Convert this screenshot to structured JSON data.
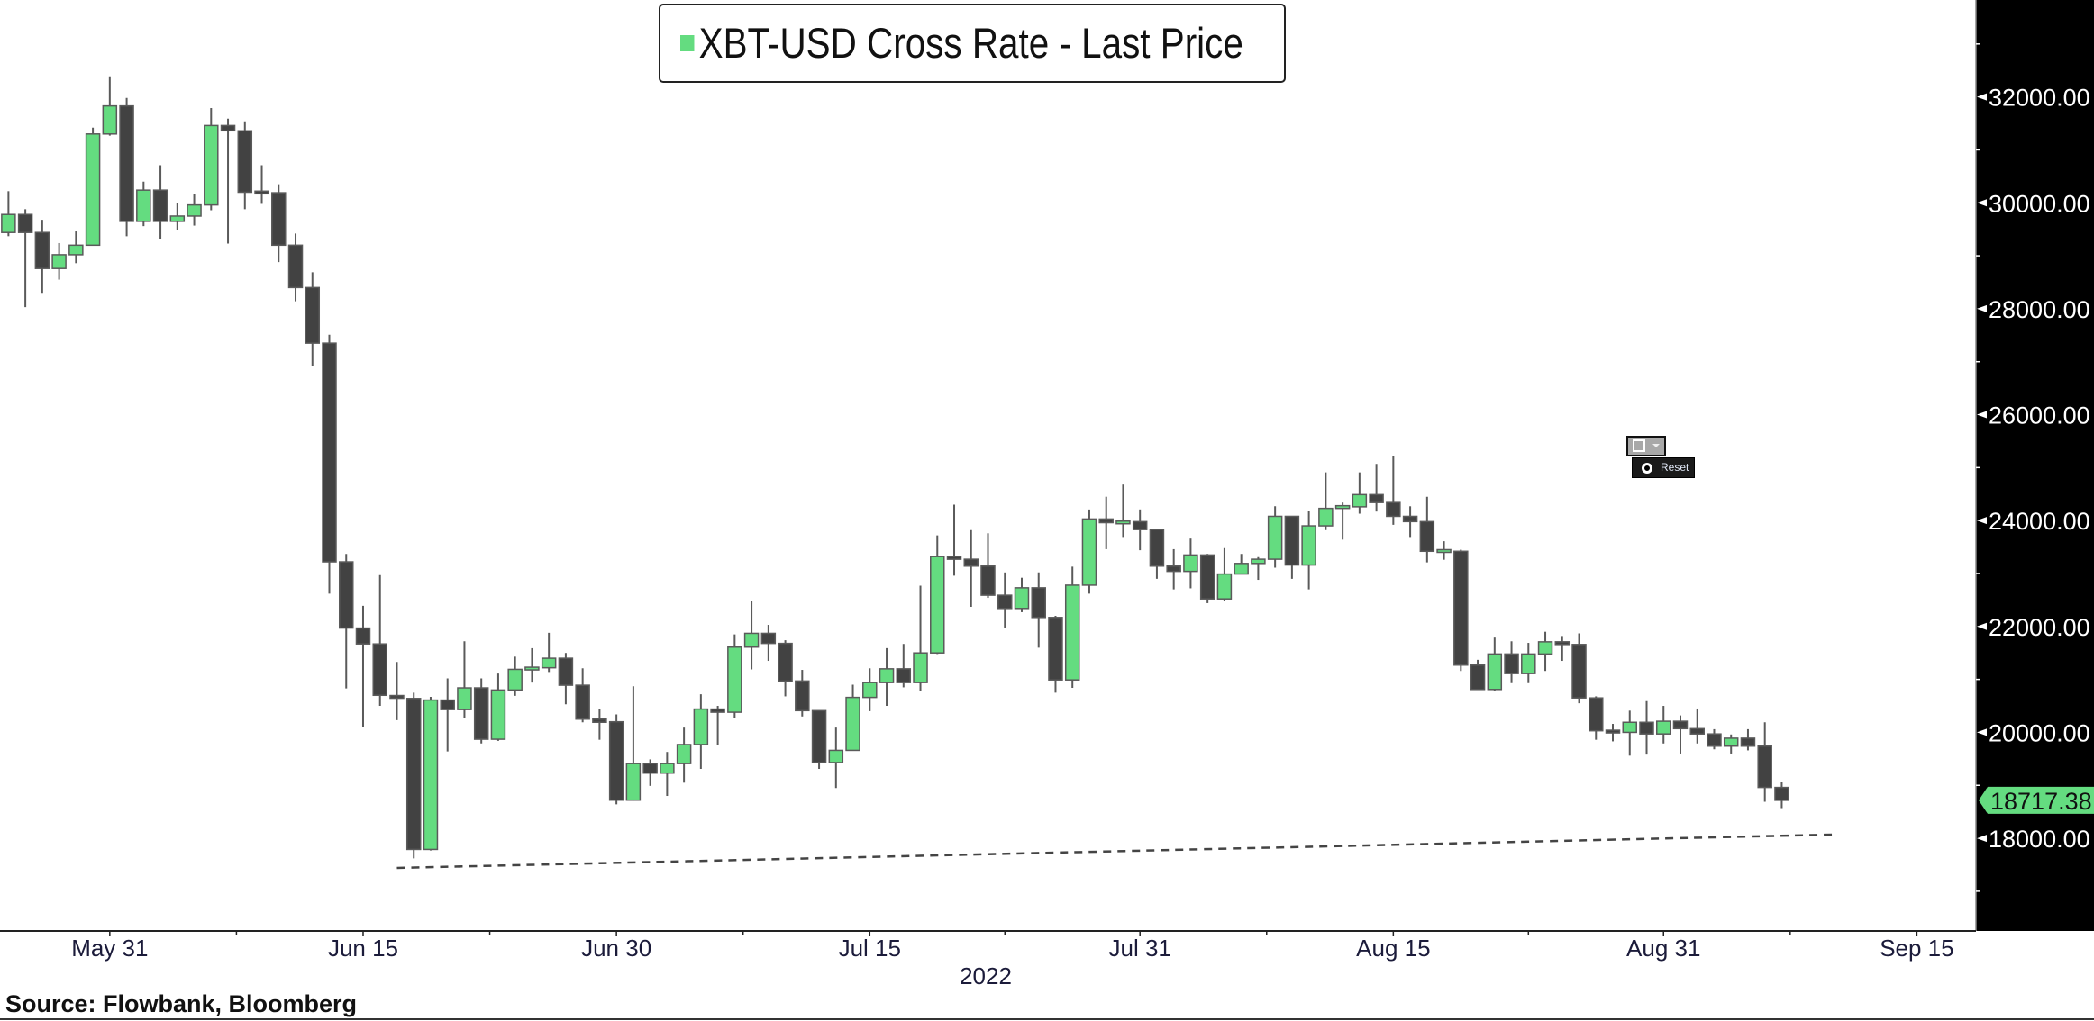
{
  "title": "XBT-USD Cross Rate - Last Price",
  "source": "Source: Flowbank, Bloomberg",
  "widget": {
    "reset_label": "Reset"
  },
  "colors": {
    "up": "#64dc80",
    "down": "#424242",
    "axis_bg": "#000000",
    "last_price_tag": "#64dc80"
  },
  "chart_data": {
    "type": "candlestick",
    "title": "XBT-USD Cross Rate - Last Price",
    "legend": [
      {
        "name": "XBT-USD Cross Rate - Last Price",
        "placement": "top-center"
      }
    ],
    "xlabel": "2022",
    "ylabel": "",
    "start_date": "2022-05-25",
    "interval": "1 day",
    "x_ticks": [
      {
        "label": "May 31",
        "day": 6
      },
      {
        "label": "Jun 15",
        "day": 21
      },
      {
        "label": "Jun 30",
        "day": 36
      },
      {
        "label": "Jul 15",
        "day": 51
      },
      {
        "label": "Jul 31",
        "day": 67
      },
      {
        "label": "Aug 15",
        "day": 82
      },
      {
        "label": "Aug 31",
        "day": 98
      },
      {
        "label": "Sep 15",
        "day": 113
      }
    ],
    "y_ticks": [
      "18000.00",
      "20000.00",
      "22000.00",
      "24000.00",
      "26000.00",
      "28000.00",
      "30000.00",
      "32000.00"
    ],
    "ylim": [
      16250,
      33830
    ],
    "xlim_days": [
      -0.5,
      116.5
    ],
    "grid": false,
    "y_axis_side": "right",
    "last_price": "18717.38",
    "ohlc_fields": [
      "open",
      "high",
      "low",
      "close"
    ],
    "ohlc": [
      [
        29440,
        30220,
        29370,
        29780
      ],
      [
        29780,
        29880,
        28030,
        29440
      ],
      [
        29440,
        29680,
        28300,
        28760
      ],
      [
        28760,
        29240,
        28550,
        29020
      ],
      [
        29020,
        29460,
        28860,
        29200
      ],
      [
        29200,
        31420,
        29200,
        31300
      ],
      [
        31300,
        32390,
        31270,
        31830
      ],
      [
        31830,
        31980,
        29370,
        29650
      ],
      [
        29650,
        30400,
        29560,
        30240
      ],
      [
        30240,
        30710,
        29310,
        29650
      ],
      [
        29650,
        29990,
        29490,
        29750
      ],
      [
        29750,
        30170,
        29570,
        29960
      ],
      [
        29960,
        31790,
        29860,
        31460
      ],
      [
        31460,
        31590,
        29230,
        31360
      ],
      [
        31360,
        31540,
        29880,
        30200
      ],
      [
        30200,
        30710,
        29980,
        30190
      ],
      [
        30190,
        30350,
        28880,
        29200
      ],
      [
        29200,
        29420,
        28140,
        28400
      ],
      [
        28400,
        28690,
        26910,
        27350
      ],
      [
        27350,
        27510,
        22620,
        23220
      ],
      [
        23220,
        23370,
        20830,
        21970
      ],
      [
        21970,
        22390,
        20110,
        21670
      ],
      [
        21670,
        22970,
        20500,
        20700
      ],
      [
        20680,
        21330,
        20230,
        20660
      ],
      [
        20640,
        20750,
        17620,
        17790
      ],
      [
        17790,
        20670,
        17770,
        20610
      ],
      [
        20610,
        21020,
        19640,
        20430
      ],
      [
        20430,
        21720,
        20280,
        20840
      ],
      [
        20840,
        21020,
        19790,
        19870
      ],
      [
        19870,
        21110,
        19840,
        20800
      ],
      [
        20800,
        21430,
        20690,
        21190
      ],
      [
        21200,
        21590,
        20940,
        21210
      ],
      [
        21220,
        21880,
        21140,
        21400
      ],
      [
        21400,
        21500,
        20530,
        20890
      ],
      [
        20890,
        21210,
        20190,
        20250
      ],
      [
        20250,
        20440,
        19860,
        20190
      ],
      [
        20200,
        20340,
        18640,
        18720
      ],
      [
        18720,
        20870,
        18710,
        19410
      ],
      [
        19410,
        19490,
        18990,
        19230
      ],
      [
        19230,
        19630,
        18800,
        19410
      ],
      [
        19410,
        20090,
        19050,
        19770
      ],
      [
        19770,
        20720,
        19310,
        20440
      ],
      [
        20440,
        20500,
        19760,
        20380
      ],
      [
        20380,
        21850,
        20270,
        21610
      ],
      [
        21610,
        22490,
        21190,
        21870
      ],
      [
        21870,
        22030,
        21350,
        21680
      ],
      [
        21680,
        21740,
        20680,
        20970
      ],
      [
        20970,
        21180,
        20300,
        20410
      ],
      [
        20410,
        20410,
        19310,
        19430
      ],
      [
        19430,
        20090,
        18950,
        19660
      ],
      [
        19660,
        20900,
        19660,
        20660
      ],
      [
        20660,
        21210,
        20400,
        20940
      ],
      [
        20940,
        21590,
        20500,
        21200
      ],
      [
        21200,
        21670,
        20850,
        20940
      ],
      [
        20940,
        22770,
        20780,
        21500
      ],
      [
        21500,
        23720,
        21480,
        23320
      ],
      [
        23320,
        24300,
        22960,
        23270
      ],
      [
        23270,
        23820,
        22370,
        23140
      ],
      [
        23140,
        23760,
        22540,
        22590
      ],
      [
        22590,
        23020,
        21980,
        22340
      ],
      [
        22340,
        22920,
        22270,
        22730
      ],
      [
        22730,
        23020,
        21600,
        22170
      ],
      [
        22170,
        22200,
        20750,
        20990
      ],
      [
        20990,
        23130,
        20840,
        22780
      ],
      [
        22780,
        24210,
        22620,
        24030
      ],
      [
        24030,
        24450,
        23460,
        23960
      ],
      [
        23960,
        24680,
        23690,
        23970
      ],
      [
        23980,
        24210,
        23440,
        23830
      ],
      [
        23830,
        23830,
        22900,
        23140
      ],
      [
        23140,
        23460,
        22700,
        23040
      ],
      [
        23040,
        23660,
        22720,
        23350
      ],
      [
        23350,
        23370,
        22440,
        22520
      ],
      [
        22520,
        23480,
        22490,
        22990
      ],
      [
        22990,
        23370,
        22990,
        23190
      ],
      [
        23190,
        23310,
        22880,
        23270
      ],
      [
        23270,
        24270,
        23110,
        24080
      ],
      [
        24080,
        24080,
        22900,
        23160
      ],
      [
        23160,
        24190,
        22700,
        23900
      ],
      [
        23900,
        24910,
        23820,
        24230
      ],
      [
        24250,
        24340,
        23640,
        24260
      ],
      [
        24260,
        24910,
        24130,
        24490
      ],
      [
        24490,
        25070,
        24170,
        24340
      ],
      [
        24340,
        25220,
        23920,
        24080
      ],
      [
        24080,
        24270,
        23690,
        23980
      ],
      [
        23980,
        24450,
        23210,
        23420
      ],
      [
        23420,
        23610,
        23260,
        23430
      ],
      [
        23420,
        23450,
        21160,
        21270
      ],
      [
        21270,
        21370,
        20810,
        20810
      ],
      [
        20810,
        21790,
        20790,
        21480
      ],
      [
        21480,
        21720,
        20930,
        21110
      ],
      [
        21110,
        21690,
        20930,
        21480
      ],
      [
        21480,
        21900,
        21160,
        21710
      ],
      [
        21710,
        21820,
        21350,
        21660
      ],
      [
        21660,
        21870,
        20550,
        20650
      ],
      [
        20650,
        20680,
        19860,
        20030
      ],
      [
        20030,
        20160,
        19830,
        20000
      ],
      [
        20000,
        20410,
        19560,
        20190
      ],
      [
        20190,
        20590,
        19580,
        19970
      ],
      [
        19970,
        20500,
        19790,
        20210
      ],
      [
        20210,
        20320,
        19600,
        20070
      ],
      [
        20070,
        20450,
        19790,
        19970
      ],
      [
        19970,
        20060,
        19680,
        19740
      ],
      [
        19740,
        19960,
        19600,
        19890
      ],
      [
        19890,
        20060,
        19660,
        19740
      ],
      [
        19740,
        20190,
        18690,
        18960
      ],
      [
        18960,
        19060,
        18570,
        18717.38
      ]
    ],
    "annotations": [
      {
        "type": "dashed-trendline",
        "start": {
          "day": 23,
          "value": 17440
        },
        "end": {
          "day": 108,
          "value": 18070
        }
      }
    ]
  }
}
